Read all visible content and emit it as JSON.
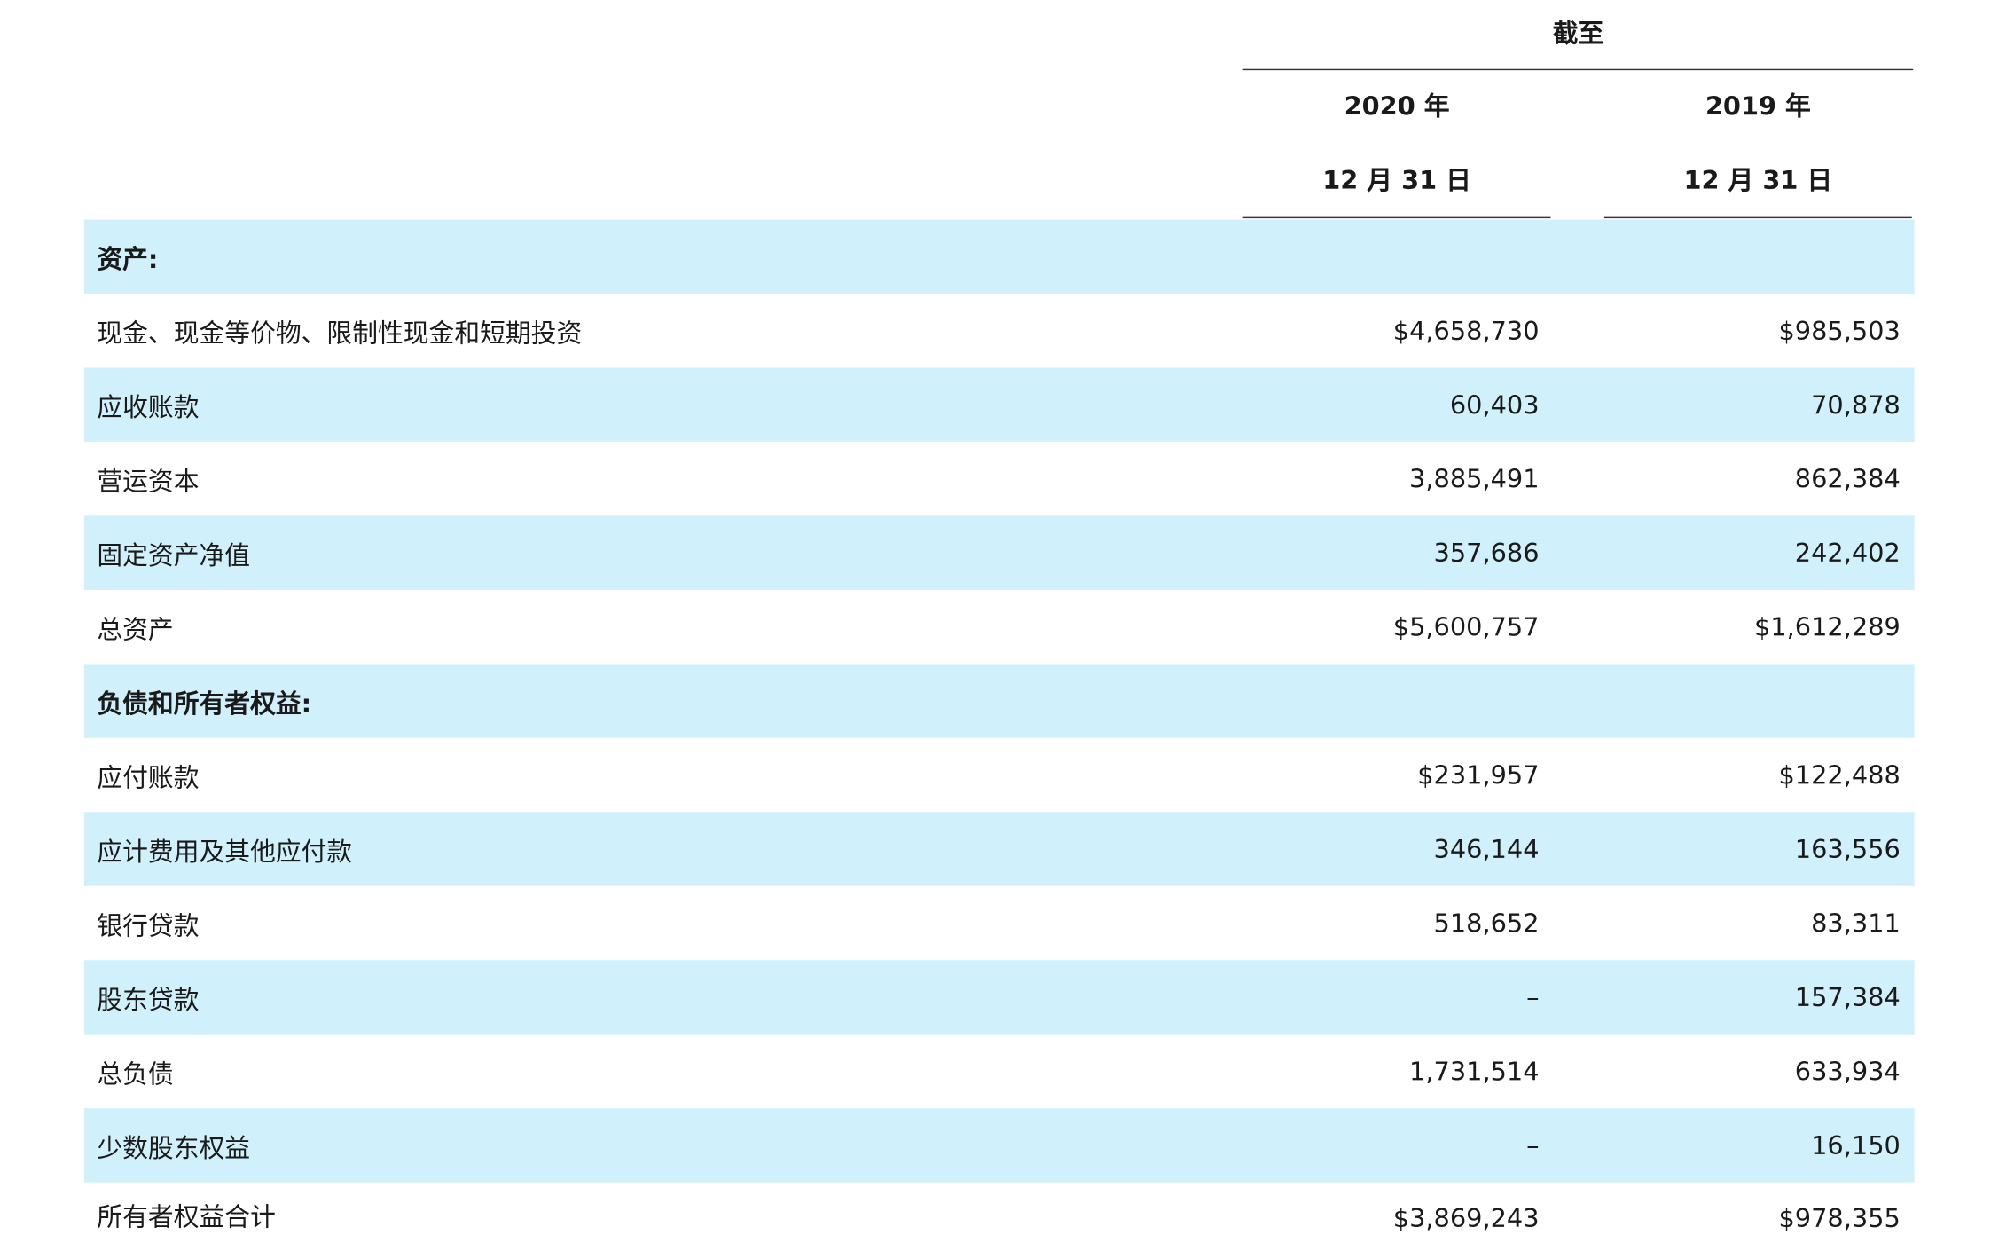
{
  "header": {
    "as_of": "截至",
    "col1": {
      "year": "2020 年",
      "date": "12 月 31 日"
    },
    "col2": {
      "year": "2019 年",
      "date": "12 月 31 日"
    }
  },
  "rows": [
    {
      "label": "资产:",
      "v1": "",
      "v2": ""
    },
    {
      "label": "现金、现金等价物、限制性现金和短期投资",
      "v1": "$4,658,730",
      "v2": "$985,503"
    },
    {
      "label": "应收账款",
      "v1": "60,403",
      "v2": "70,878"
    },
    {
      "label": "营运资本",
      "v1": "3,885,491",
      "v2": "862,384"
    },
    {
      "label": "固定资产净值",
      "v1": "357,686",
      "v2": "242,402"
    },
    {
      "label": "总资产",
      "v1": "$5,600,757",
      "v2": "$1,612,289"
    },
    {
      "label": "负债和所有者权益:",
      "v1": "",
      "v2": ""
    },
    {
      "label": "应付账款",
      "v1": "$231,957",
      "v2": "$122,488"
    },
    {
      "label": "应计费用及其他应付款",
      "v1": "346,144",
      "v2": "163,556"
    },
    {
      "label": "银行贷款",
      "v1": "518,652",
      "v2": "83,311"
    },
    {
      "label": "股东贷款",
      "v1": "–",
      "v2": "157,384"
    },
    {
      "label": "总负债",
      "v1": "1,731,514",
      "v2": "633,934"
    },
    {
      "label": "少数股东权益",
      "v1": "–",
      "v2": "16,150"
    },
    {
      "label": "所有者权益合计",
      "v1": "$3,869,243",
      "v2": "$978,355"
    }
  ],
  "colors": {
    "row_shade": "#d0f1fc",
    "rule": "#333333",
    "text": "#1a1a1a"
  }
}
